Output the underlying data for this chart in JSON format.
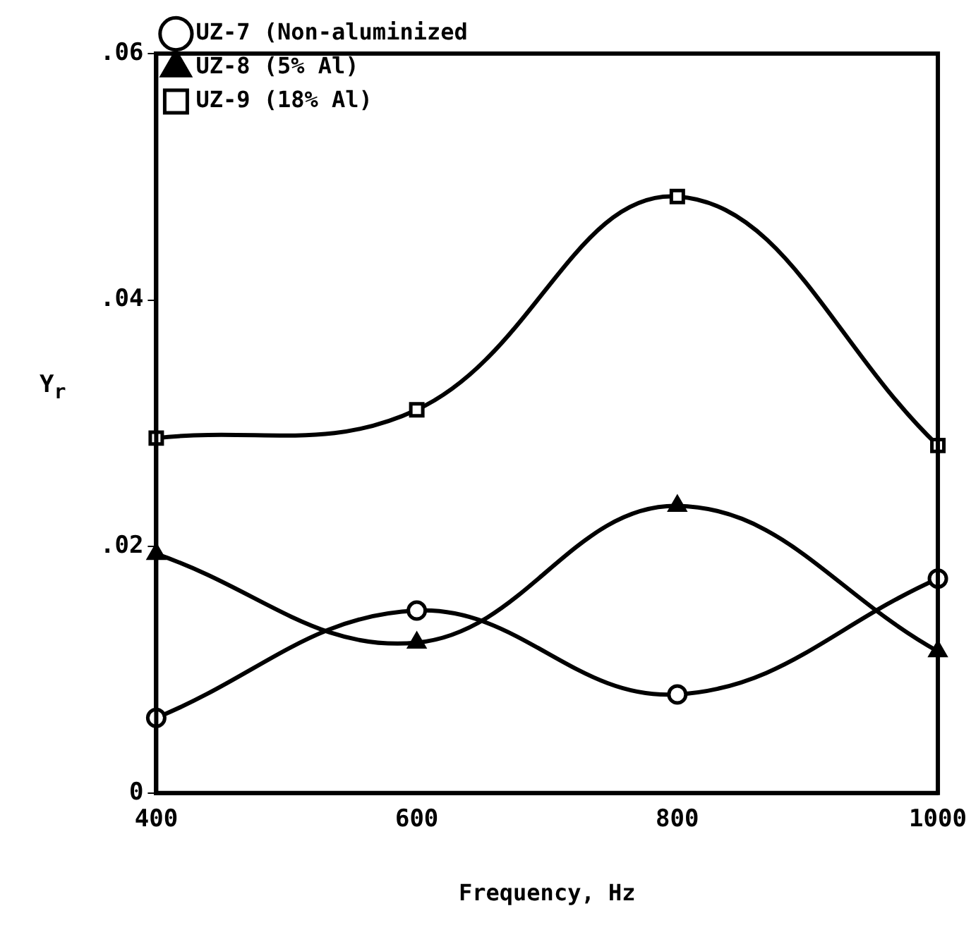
{
  "chart_data": {
    "type": "line",
    "xlabel": "Frequency, Hz",
    "ylabel": "Y$_{r}$",
    "x": [
      400,
      600,
      800,
      1000
    ],
    "series": [
      {
        "name": "UZ-7 (Non-aluminized",
        "color": "#000000",
        "marker": "circle",
        "values": [
          0.0061,
          0.0148,
          0.008,
          0.0174
        ]
      },
      {
        "name": "UZ-8 (5% Al)",
        "color": "#000000",
        "marker": "triangle",
        "values": [
          0.0194,
          0.0122,
          0.0233,
          0.0115
        ]
      },
      {
        "name": "UZ-9 (18% Al)",
        "color": "#000000",
        "marker": "square",
        "values": [
          0.0288,
          0.0311,
          0.0484,
          0.0282
        ]
      }
    ],
    "xlim": [
      400,
      1000
    ],
    "xticks": [
      400,
      600,
      800,
      1000
    ],
    "ylim": [
      0,
      0.06
    ],
    "yticks": [
      {
        "value": 0,
        "label": "0"
      },
      {
        "value": 0.02,
        "label": ".02"
      },
      {
        "value": 0.04,
        "label": ".04"
      },
      {
        "value": 0.06,
        "label": ".06"
      }
    ],
    "grid": false,
    "legend": "top left",
    "line_style": "solid"
  }
}
